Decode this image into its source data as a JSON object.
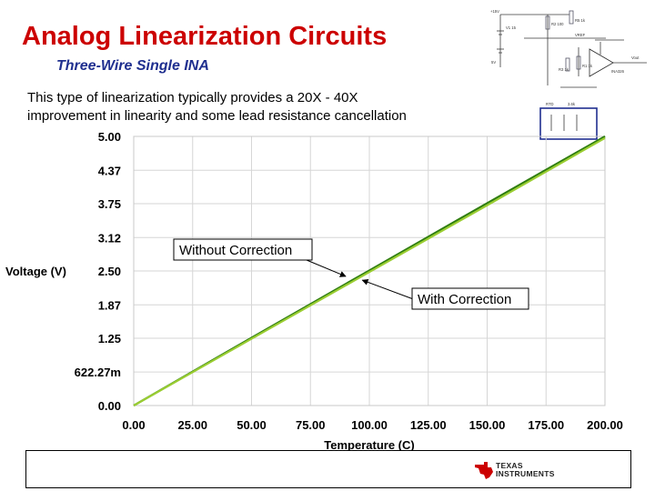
{
  "slide": {
    "title": "Analog Linearization Circuits",
    "subtitle": "Three-Wire Single INA",
    "description_line1": "This type of linearization typically provides a 20X - 40X",
    "description_line2": "improvement in linearity and some lead resistance cancellation"
  },
  "schematic": {
    "labels": [
      "+15V",
      "V1 15",
      "VREF",
      "5V",
      "Vout",
      "INA326",
      "R2 100",
      "R1 1k",
      "R3 1k",
      "R5 1k",
      "RTD",
      "3.6k"
    ]
  },
  "logo": {
    "line1": "TEXAS",
    "line2": "INSTRUMENTS",
    "color": "#cc0000"
  },
  "colors": {
    "title": "#cc0000",
    "subtitle": "#1f2f8f",
    "series_without": "#2e7d10",
    "series_with": "#9acd32",
    "grid": "#d6d6d6"
  },
  "chart_data": {
    "type": "line",
    "xlabel": "Temperature (C)",
    "ylabel": "Voltage (V)",
    "xlim": [
      0,
      200
    ],
    "ylim": [
      0,
      5
    ],
    "x_ticks": [
      0,
      25,
      50,
      75,
      100,
      125,
      150,
      175,
      200
    ],
    "x_tick_labels": [
      "0.00",
      "25.00",
      "50.00",
      "75.00",
      "100.00",
      "125.00",
      "150.00",
      "175.00",
      "200.00"
    ],
    "y_ticks": [
      0,
      0.62227,
      1.25,
      1.87,
      2.5,
      3.12,
      3.75,
      4.37,
      5.0
    ],
    "y_tick_labels": [
      "0.00",
      "622.27m",
      "1.25",
      "1.87",
      "2.50",
      "3.12",
      "3.75",
      "4.37",
      "5.00"
    ],
    "grid": true,
    "series": [
      {
        "name": "Without Correction",
        "x": [
          0,
          50,
          100,
          150,
          200
        ],
        "y": [
          0,
          1.26,
          2.51,
          3.76,
          5.0
        ]
      },
      {
        "name": "With Correction",
        "x": [
          0,
          50,
          100,
          150,
          200
        ],
        "y": [
          0,
          1.24,
          2.48,
          3.72,
          4.97
        ]
      }
    ],
    "annotations": [
      {
        "text": "Without Correction",
        "target_x": 90,
        "target_y": 2.4
      },
      {
        "text": "With Correction",
        "target_x": 97,
        "target_y": 2.33
      }
    ]
  }
}
